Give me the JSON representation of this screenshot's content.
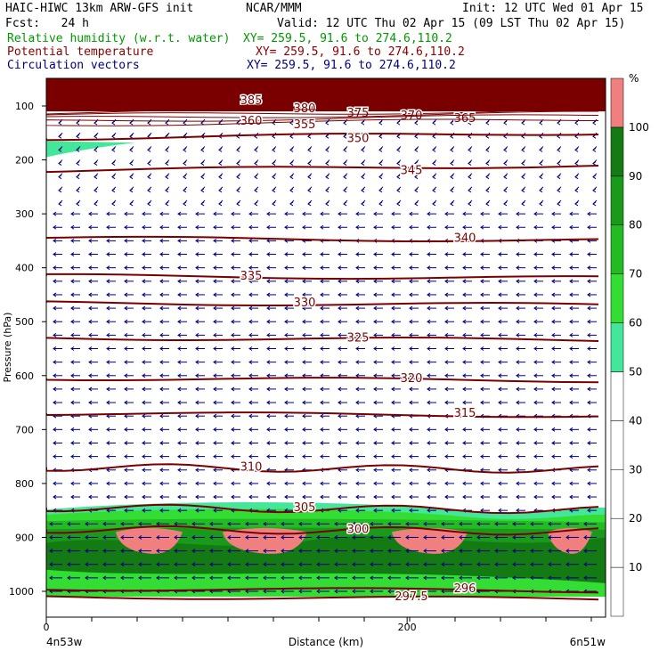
{
  "header": {
    "model": "HAIC-HIWC 13km ARW-GFS init",
    "org": "NCAR/MMM",
    "init": "Init: 12 UTC Wed 01 Apr 15",
    "fcst": "Fcst:   24 h",
    "valid": "Valid: 12 UTC Thu 02 Apr 15 (09 LST Thu 02 Apr 15)",
    "fields": [
      {
        "label": "Relative humidity (w.r.t. water)",
        "xy": "XY= 259.5, 91.6 to 274.6,110.2",
        "color": "#009900"
      },
      {
        "label": "Potential temperature",
        "xy": "XY= 259.5, 91.6 to 274.6,110.2",
        "color": "#8b0000"
      },
      {
        "label": "Circulation vectors",
        "xy": "XY= 259.5, 91.6 to 274.6,110.2",
        "color": "#000080"
      }
    ]
  },
  "chart_data": {
    "type": "contour-cross-section",
    "ylabel": "Pressure (hPa)",
    "xlabel": "Distance (km)",
    "x_ticks": [
      "0",
      "200"
    ],
    "y_ticks": [
      "100",
      "200",
      "300",
      "400",
      "500",
      "600",
      "700",
      "800",
      "900",
      "1000"
    ],
    "x_endpoints": [
      "4n53w",
      "6n51w"
    ],
    "ylim": [
      1050,
      35
    ],
    "xlim": [
      0,
      310
    ],
    "theta_contours": [
      {
        "label": "385",
        "p": 90
      },
      {
        "label": "380",
        "p": 105
      },
      {
        "label": "375",
        "p": 113
      },
      {
        "label": "370",
        "p": 118
      },
      {
        "label": "365",
        "p": 123
      },
      {
        "label": "360",
        "p": 128
      },
      {
        "label": "355",
        "p": 135
      },
      {
        "label": "350",
        "p": 160
      },
      {
        "label": "345",
        "p": 220
      },
      {
        "label": "340",
        "p": 345
      },
      {
        "label": "335",
        "p": 415
      },
      {
        "label": "330",
        "p": 465
      },
      {
        "label": "325",
        "p": 530
      },
      {
        "label": "320",
        "p": 605
      },
      {
        "label": "315",
        "p": 670
      },
      {
        "label": "310",
        "p": 770
      },
      {
        "label": "305",
        "p": 845
      },
      {
        "label": "300",
        "p": 885
      },
      {
        "label": "297.5",
        "p": 1010
      },
      {
        "label": "296",
        "p": 995
      }
    ],
    "colorbar": {
      "unit": "%",
      "levels": [
        "10",
        "20",
        "30",
        "40",
        "50",
        "60",
        "70",
        "80",
        "90",
        "100"
      ],
      "colors": [
        "#ffffff",
        "#ffffff",
        "#ffffff",
        "#ffffff",
        "#ffffff",
        "#44e69a",
        "#33dd33",
        "#22bb22",
        "#1a9a1a",
        "#147a14",
        "#f08080"
      ]
    },
    "rh_regions": {
      "moist_layer_top_p": 835,
      "high_rh_patches": 4,
      "upper_band_color": "#7a0000"
    }
  }
}
